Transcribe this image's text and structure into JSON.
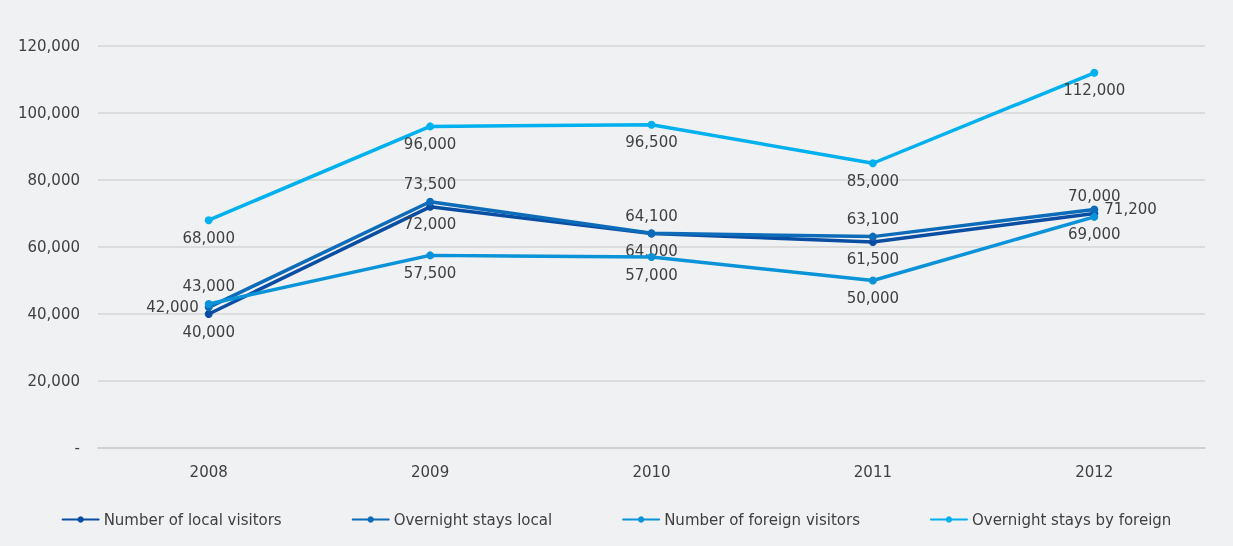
{
  "chart_data": {
    "type": "line",
    "categories": [
      "2008",
      "2009",
      "2010",
      "2011",
      "2012"
    ],
    "series": [
      {
        "name": "Number of local visitors",
        "color": "#0a4ea3",
        "values": [
          40000,
          72000,
          64000,
          61500,
          70000
        ],
        "value_labels": [
          "40,000",
          "72,000",
          "64,000",
          "61,500",
          "70,000"
        ]
      },
      {
        "name": "Overnight stays local",
        "color": "#0d6cb9",
        "values": [
          42000,
          73500,
          64100,
          63100,
          71200
        ],
        "value_labels": [
          "42,000",
          "73,500",
          "64,100",
          "63,100",
          "71,200"
        ]
      },
      {
        "name": "Number of foreign visitors",
        "color": "#0a93d8",
        "values": [
          43000,
          57500,
          57000,
          50000,
          69000
        ],
        "value_labels": [
          "43,000",
          "57,500",
          "57,000",
          "50,000",
          "69,000"
        ]
      },
      {
        "name": "Overnight stays by foreign",
        "color": "#00b0ef",
        "values": [
          68000,
          96000,
          96500,
          85000,
          112000
        ],
        "value_labels": [
          "68,000",
          "96,000",
          "96,500",
          "85,000",
          "112,000"
        ]
      }
    ],
    "ylim": [
      0,
      120000
    ],
    "yticks": [
      {
        "value": 0,
        "label": "-"
      },
      {
        "value": 20000,
        "label": "20,000"
      },
      {
        "value": 40000,
        "label": "40,000"
      },
      {
        "value": 60000,
        "label": "60,000"
      },
      {
        "value": 80000,
        "label": "80,000"
      },
      {
        "value": 100000,
        "label": "100,000"
      },
      {
        "value": 120000,
        "label": "120,000"
      }
    ],
    "grid": "y",
    "legend": "bottom",
    "marker": "circle",
    "line_style": "solid"
  }
}
